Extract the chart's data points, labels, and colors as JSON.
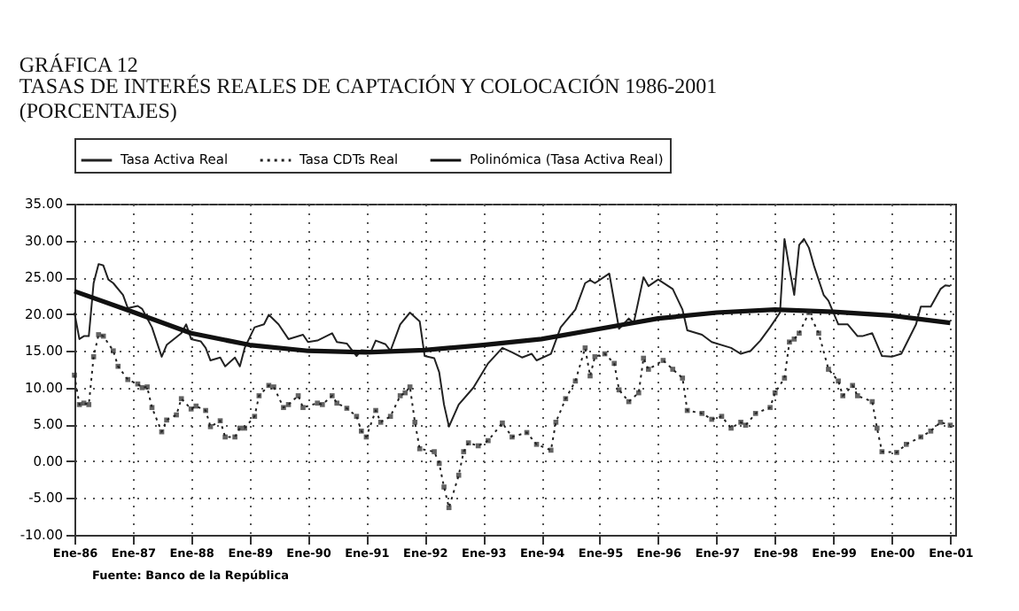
{
  "chart_data": {
    "type": "line",
    "title": "GRÁFICA 12",
    "subtitle": " TASAS DE INTERÉS REALES DE CAPTACIÓN Y COLOCACIÓN 1986-2001\n(PORCENTAJES)",
    "annotations": [
      "Fuente: Banco de la República"
    ],
    "xlim": [
      "1986-01",
      "2001-02"
    ],
    "xticks": [
      {
        "value": "1986-01",
        "label": "Ene-86"
      },
      {
        "value": "1987-01",
        "label": "Ene-87"
      },
      {
        "value": "1988-01",
        "label": "Ene-88"
      },
      {
        "value": "1989-01",
        "label": "Ene-89"
      },
      {
        "value": "1990-01",
        "label": "Ene-90"
      },
      {
        "value": "1991-01",
        "label": "Ene-91"
      },
      {
        "value": "1992-01",
        "label": "Ene-92"
      },
      {
        "value": "1993-01",
        "label": "Ene-93"
      },
      {
        "value": "1994-01",
        "label": "Ene-94"
      },
      {
        "value": "1995-01",
        "label": "Ene-95"
      },
      {
        "value": "1996-01",
        "label": "Ene-96"
      },
      {
        "value": "1997-01",
        "label": "Ene-97"
      },
      {
        "value": "1998-01",
        "label": "Ene-98"
      },
      {
        "value": "1999-01",
        "label": "Ene-99"
      },
      {
        "value": "2000-01",
        "label": "Ene-00"
      },
      {
        "value": "2001-01",
        "label": "Ene-01"
      }
    ],
    "ylim": [
      -10,
      35
    ],
    "yticks": [
      {
        "value": -10,
        "label": "-10.00"
      },
      {
        "value": -5,
        "label": "-5.00"
      },
      {
        "value": 0,
        "label": "0.00"
      },
      {
        "value": 5,
        "label": "5.00"
      },
      {
        "value": 10,
        "label": "10.00"
      },
      {
        "value": 15,
        "label": "15.00"
      },
      {
        "value": 20,
        "label": "20.00"
      },
      {
        "value": 25,
        "label": "25.00"
      },
      {
        "value": 30,
        "label": "30.00"
      },
      {
        "value": 35,
        "label": "35.00"
      }
    ],
    "grid": true,
    "legend": "top",
    "line_style": "solid",
    "series": [
      {
        "name": "Tasa Activa Real",
        "color": "#222222",
        "x": [
          "1986-01",
          "1986-02",
          "1986-03",
          "1986-04",
          "1986-05",
          "1986-06",
          "1986-07",
          "1986-08",
          "1986-09",
          "1986-11",
          "1986-12",
          "1987-02",
          "1987-03",
          "1987-05",
          "1987-07",
          "1987-08",
          "1987-11",
          "1987-12",
          "1988-01",
          "1988-03",
          "1988-04",
          "1988-05",
          "1988-07",
          "1988-08",
          "1988-10",
          "1988-11",
          "1988-12",
          "1989-02",
          "1989-04",
          "1989-05",
          "1989-07",
          "1989-09",
          "1989-12",
          "1990-01",
          "1990-03",
          "1990-06",
          "1990-07",
          "1990-09",
          "1990-11",
          "1990-12",
          "1991-02",
          "1991-03",
          "1991-05",
          "1991-06",
          "1991-08",
          "1991-10",
          "1991-12",
          "1992-01",
          "1992-03",
          "1992-04",
          "1992-05",
          "1992-06",
          "1992-08",
          "1992-11",
          "1993-02",
          "1993-05",
          "1993-07",
          "1993-09",
          "1993-11",
          "1993-12",
          "1994-03",
          "1994-05",
          "1994-08",
          "1994-10",
          "1994-11",
          "1994-12",
          "1995-03",
          "1995-05",
          "1995-07",
          "1995-08",
          "1995-10",
          "1995-11",
          "1996-01",
          "1996-04",
          "1996-06",
          "1996-07",
          "1996-10",
          "1996-12",
          "1997-04",
          "1997-06",
          "1997-08",
          "1997-10",
          "1997-12",
          "1998-02",
          "1998-03",
          "1998-04",
          "1998-05",
          "1998-06",
          "1998-07",
          "1998-08",
          "1998-09",
          "1998-11",
          "1998-12",
          "1999-02",
          "1999-04",
          "1999-06",
          "1999-07",
          "1999-09",
          "1999-11",
          "2000-01",
          "2000-03",
          "2000-06",
          "2000-07",
          "2000-09",
          "2000-11",
          "2000-12",
          "2001-01"
        ],
        "values": [
          20.2,
          16.6,
          17,
          17,
          24.2,
          26.8,
          26.6,
          24.7,
          24.2,
          22.6,
          20.8,
          21.1,
          20.7,
          18.2,
          14.2,
          15.8,
          17.4,
          18.6,
          16.6,
          16.3,
          15.4,
          13.7,
          14.1,
          12.9,
          14.1,
          12.9,
          15.4,
          18.2,
          18.6,
          19.9,
          18.6,
          16.6,
          17.2,
          16.2,
          16.4,
          17.4,
          16.2,
          16.0,
          14.3,
          15.1,
          15.0,
          16.4,
          15.9,
          15.0,
          18.6,
          20.2,
          19.0,
          14.3,
          14.0,
          12.1,
          7.7,
          4.7,
          7.7,
          10.0,
          13.3,
          15.4,
          14.8,
          14.1,
          14.6,
          13.7,
          14.6,
          18.2,
          20.6,
          24.2,
          24.6,
          24.2,
          25.5,
          18.0,
          19.4,
          18.8,
          25.0,
          23.8,
          24.7,
          23.4,
          20.6,
          17.8,
          17.2,
          16.2,
          15.4,
          14.6,
          15.0,
          16.4,
          18.2,
          20.2,
          30.2,
          26.2,
          22.6,
          29.4,
          30.2,
          29.0,
          26.6,
          22.6,
          21.8,
          18.6,
          18.6,
          17.0,
          17.0,
          17.4,
          14.3,
          14.2,
          14.6,
          18.6,
          21.0,
          21.0,
          23.4,
          23.9,
          23.8
        ]
      },
      {
        "name": "Tasa CDTs Real",
        "color": "#222222",
        "marker": "square",
        "line_style": "dotted",
        "x": [
          "1986-01",
          "1986-02",
          "1986-03",
          "1986-04",
          "1986-05",
          "1986-06",
          "1986-07",
          "1986-09",
          "1986-10",
          "1986-12",
          "1987-02",
          "1987-03",
          "1987-04",
          "1987-05",
          "1987-07",
          "1987-08",
          "1987-10",
          "1987-11",
          "1988-01",
          "1988-02",
          "1988-04",
          "1988-05",
          "1988-07",
          "1988-08",
          "1988-10",
          "1988-11",
          "1988-12",
          "1989-02",
          "1989-03",
          "1989-05",
          "1989-06",
          "1989-08",
          "1989-09",
          "1989-11",
          "1989-12",
          "1990-03",
          "1990-04",
          "1990-06",
          "1990-07",
          "1990-09",
          "1990-11",
          "1990-12",
          "1991-01",
          "1991-03",
          "1991-04",
          "1991-06",
          "1991-08",
          "1991-09",
          "1991-10",
          "1991-11",
          "1991-12",
          "1992-03",
          "1992-04",
          "1992-05",
          "1992-06",
          "1992-08",
          "1992-09",
          "1992-10",
          "1992-12",
          "1993-02",
          "1993-05",
          "1993-07",
          "1993-10",
          "1993-12",
          "1994-03",
          "1994-04",
          "1994-06",
          "1994-08",
          "1994-10",
          "1994-11",
          "1994-12",
          "1995-02",
          "1995-04",
          "1995-05",
          "1995-07",
          "1995-09",
          "1995-10",
          "1995-11",
          "1996-02",
          "1996-04",
          "1996-06",
          "1996-07",
          "1996-10",
          "1996-12",
          "1997-02",
          "1997-04",
          "1997-06",
          "1997-07",
          "1997-09",
          "1997-12",
          "1998-01",
          "1998-03",
          "1998-04",
          "1998-05",
          "1998-06",
          "1998-08",
          "1998-10",
          "1998-12",
          "1999-02",
          "1999-03",
          "1999-05",
          "1999-06",
          "1999-09",
          "1999-10",
          "1999-11",
          "2000-02",
          "2000-04",
          "2000-07",
          "2000-09",
          "2000-11",
          "2001-01"
        ],
        "values": [
          11.7,
          7.7,
          7.9,
          7.7,
          14.2,
          17.2,
          17.0,
          15.0,
          12.9,
          11.1,
          10.5,
          10.0,
          10.1,
          7.3,
          4.0,
          5.6,
          6.3,
          8.5,
          7.1,
          7.5,
          6.9,
          4.7,
          5.5,
          3.3,
          3.3,
          4.5,
          4.5,
          6.1,
          8.9,
          10.3,
          10.1,
          7.3,
          7.7,
          8.9,
          7.3,
          7.9,
          7.7,
          8.9,
          7.9,
          7.2,
          6.1,
          4.1,
          3.3,
          6.9,
          5.3,
          6.1,
          8.9,
          9.3,
          10.1,
          5.3,
          1.7,
          1.3,
          -0.3,
          -3.5,
          -6.3,
          -1.9,
          1.3,
          2.5,
          2.1,
          2.8,
          5.2,
          3.3,
          3.9,
          2.3,
          1.5,
          5.3,
          8.5,
          10.9,
          15.4,
          11.6,
          14.2,
          14.6,
          13.3,
          9.7,
          8.1,
          9.3,
          14.0,
          12.5,
          13.7,
          12.5,
          11.3,
          6.9,
          6.5,
          5.7,
          6.1,
          4.5,
          5.3,
          4.9,
          6.5,
          7.3,
          9.3,
          11.3,
          16.2,
          16.6,
          17.4,
          20.2,
          17.4,
          12.5,
          10.9,
          8.9,
          10.3,
          8.9,
          8.1,
          4.5,
          1.3,
          1.2,
          2.3,
          3.3,
          4.1,
          5.3,
          4.9
        ]
      },
      {
        "name": "Polinómica (Tasa Activa Real)",
        "color": "#111111",
        "x": [
          "1986-01",
          "1987-01",
          "1988-01",
          "1989-01",
          "1990-01",
          "1991-01",
          "1992-01",
          "1993-01",
          "1994-01",
          "1995-01",
          "1996-01",
          "1997-01",
          "1998-01",
          "1999-01",
          "2000-01",
          "2001-01"
        ],
        "values": [
          23.1,
          20.3,
          17.4,
          15.8,
          15.0,
          14.8,
          15.1,
          15.8,
          16.6,
          18.0,
          19.4,
          20.2,
          20.6,
          20.3,
          19.8,
          18.8
        ]
      }
    ]
  }
}
